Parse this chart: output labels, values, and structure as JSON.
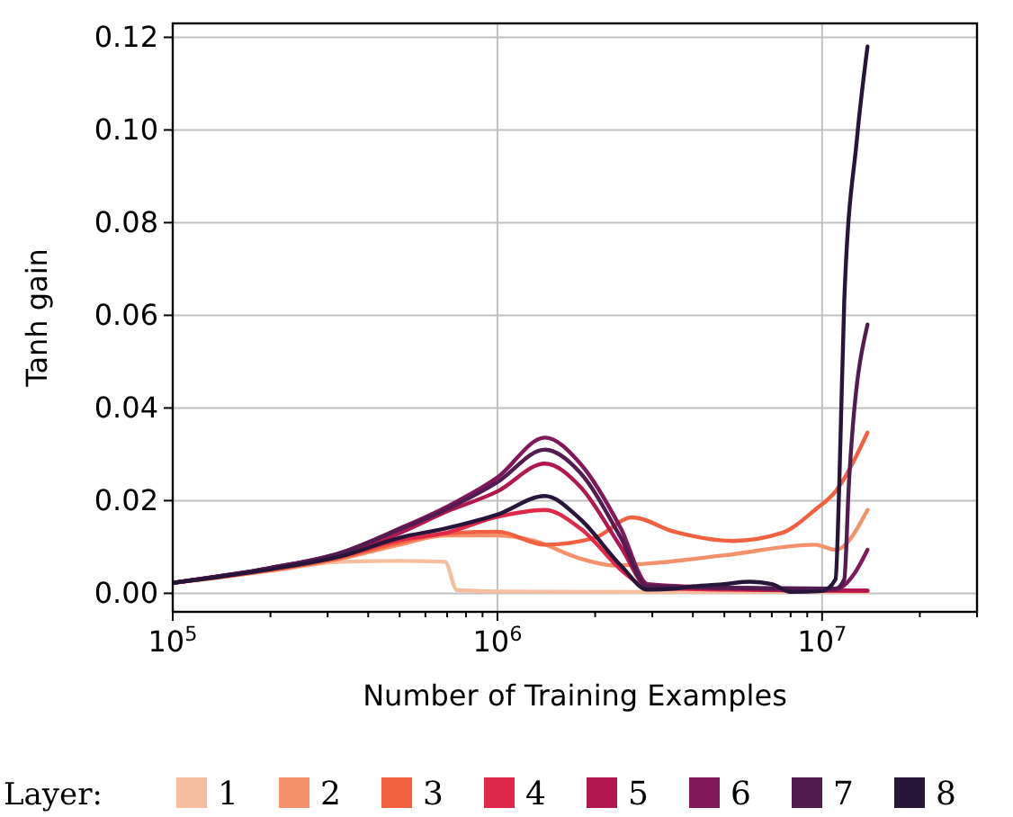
{
  "chart_data": {
    "type": "line",
    "xlabel": "Number of Training Examples",
    "ylabel": "Tanh gain",
    "legend_title": "Layer:",
    "log": "x",
    "grid": true,
    "legend": "bottom",
    "line_style": "solid",
    "marker": "none",
    "xlim": [
      100000,
      30000000
    ],
    "ylim": [
      -0.004,
      0.123
    ],
    "xticks": [
      {
        "value": 100000,
        "label": "10$^{5}$"
      },
      {
        "value": 200000,
        "label": null
      },
      {
        "value": 300000,
        "label": null
      },
      {
        "value": 400000,
        "label": null
      },
      {
        "value": 500000,
        "label": null
      },
      {
        "value": 600000,
        "label": null
      },
      {
        "value": 700000,
        "label": null
      },
      {
        "value": 800000,
        "label": null
      },
      {
        "value": 900000,
        "label": null
      },
      {
        "value": 1000000,
        "label": "10$^{6}$"
      },
      {
        "value": 2000000,
        "label": null
      },
      {
        "value": 3000000,
        "label": null
      },
      {
        "value": 4000000,
        "label": null
      },
      {
        "value": 5000000,
        "label": null
      },
      {
        "value": 6000000,
        "label": null
      },
      {
        "value": 7000000,
        "label": null
      },
      {
        "value": 8000000,
        "label": null
      },
      {
        "value": 9000000,
        "label": null
      },
      {
        "value": 10000000,
        "label": "10$^{7}$"
      },
      {
        "value": 20000000,
        "label": null
      },
      {
        "value": 30000000,
        "label": null
      }
    ],
    "yticks": [
      {
        "value": 0,
        "label": "0.00"
      },
      {
        "value": 0.02,
        "label": "0.02"
      },
      {
        "value": 0.04,
        "label": "0.04"
      },
      {
        "value": 0.06,
        "label": "0.06"
      },
      {
        "value": 0.08,
        "label": "0.08"
      },
      {
        "value": 0.1,
        "label": "0.10"
      },
      {
        "value": 0.12,
        "label": "0.12"
      }
    ],
    "series": [
      {
        "name": "1",
        "color": "#f5bf9f",
        "x": [
          101000,
          200000,
          330000,
          500000,
          690000,
          750000,
          1000000,
          3000000,
          10000000,
          13800000
        ],
        "values": [
          0.0023,
          0.0048,
          0.0068,
          0.007,
          0.0068,
          0.0007,
          0.0004,
          0.0003,
          0.0003,
          0.0003
        ]
      },
      {
        "name": "2",
        "color": "#f4916a",
        "x": [
          101000,
          200000,
          330000,
          500000,
          690000,
          1000000,
          1300000,
          1800000,
          2300000,
          3000000,
          5000000,
          9500000,
          11000000,
          13800000
        ],
        "values": [
          0.0023,
          0.005,
          0.0075,
          0.0105,
          0.0125,
          0.0125,
          0.0113,
          0.0075,
          0.006,
          0.0065,
          0.0082,
          0.0105,
          0.0094,
          0.018
        ]
      },
      {
        "name": "3",
        "color": "#f1603f",
        "x": [
          101000,
          200000,
          330000,
          500000,
          690000,
          1000000,
          1400000,
          2000000,
          2600000,
          3500000,
          5300000,
          7500000,
          9500000,
          11000000,
          13800000
        ],
        "values": [
          0.0023,
          0.005,
          0.0077,
          0.011,
          0.0129,
          0.0133,
          0.0105,
          0.012,
          0.0164,
          0.0133,
          0.0113,
          0.013,
          0.018,
          0.022,
          0.0347
        ]
      },
      {
        "name": "4",
        "color": "#e0294a",
        "x": [
          101000,
          200000,
          330000,
          500000,
          690000,
          1000000,
          1400000,
          1800000,
          2500000,
          2900000,
          5000000,
          10000000,
          13800000
        ],
        "values": [
          0.0023,
          0.0052,
          0.008,
          0.0115,
          0.013,
          0.0165,
          0.018,
          0.014,
          0.004,
          0.0012,
          0.0008,
          0.0006,
          0.0005
        ]
      },
      {
        "name": "5",
        "color": "#b3174f",
        "x": [
          101000,
          200000,
          330000,
          500000,
          690000,
          1000000,
          1400000,
          1800000,
          2400000,
          2900000,
          5000000,
          10000000,
          13800000
        ],
        "values": [
          0.0023,
          0.0054,
          0.0085,
          0.013,
          0.0175,
          0.022,
          0.028,
          0.023,
          0.01,
          0.0015,
          0.001,
          0.0006,
          0.0006
        ]
      },
      {
        "name": "6",
        "color": "#80185a",
        "x": [
          101000,
          200000,
          330000,
          500000,
          690000,
          1000000,
          1400000,
          1800000,
          2400000,
          2900000,
          5000000,
          11000000,
          12500000,
          13800000
        ],
        "values": [
          0.0023,
          0.0055,
          0.0088,
          0.014,
          0.0185,
          0.025,
          0.0336,
          0.028,
          0.014,
          0.002,
          0.0012,
          0.0008,
          0.004,
          0.0094
        ]
      },
      {
        "name": "7",
        "color": "#511c4f",
        "x": [
          101000,
          200000,
          330000,
          500000,
          690000,
          1000000,
          1400000,
          1800000,
          2400000,
          2900000,
          5000000,
          11000000,
          11700000,
          12100000,
          13800000
        ],
        "values": [
          0.0023,
          0.0055,
          0.0087,
          0.0138,
          0.018,
          0.024,
          0.031,
          0.026,
          0.012,
          0.0015,
          0.0012,
          0.001,
          0.003,
          0.024,
          0.058
        ]
      },
      {
        "name": "8",
        "color": "#271639",
        "x": [
          101000,
          200000,
          330000,
          500000,
          690000,
          1000000,
          1400000,
          1800000,
          2400000,
          2900000,
          3500000,
          4000000,
          5000000,
          6000000,
          7000000,
          8000000,
          10000000,
          11000000,
          11300000,
          11700000,
          12800000,
          13800000
        ],
        "values": [
          0.0023,
          0.0052,
          0.008,
          0.012,
          0.014,
          0.017,
          0.021,
          0.016,
          0.006,
          0.0008,
          0.001,
          0.0015,
          0.002,
          0.0025,
          0.002,
          0.0003,
          0.0005,
          0.003,
          0.024,
          0.063,
          0.098,
          0.118
        ]
      }
    ]
  }
}
